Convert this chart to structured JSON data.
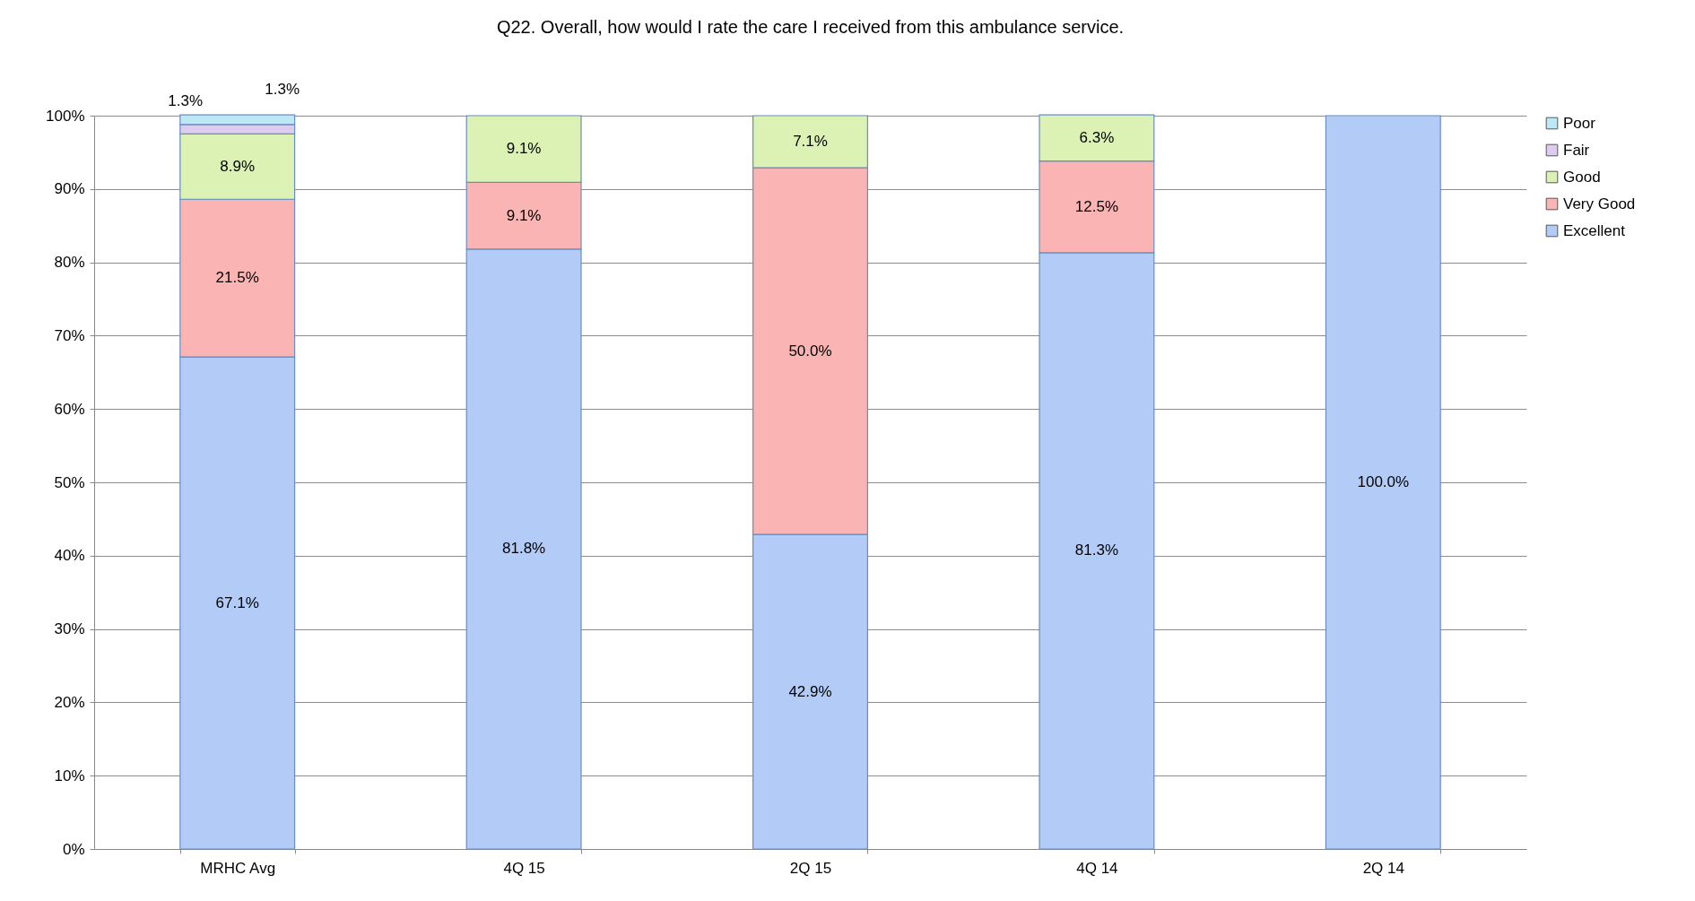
{
  "chart_data": {
    "type": "bar",
    "title": "Q22.  Overall, how would I rate the care I received from this ambulance service.",
    "categories": [
      "MRHC Avg",
      "4Q 15",
      "2Q 15",
      "4Q 14",
      "2Q 14"
    ],
    "stacked": true,
    "ylim": [
      0,
      100
    ],
    "yticks": [
      {
        "value": 0,
        "label": "0%"
      },
      {
        "value": 10,
        "label": "10%"
      },
      {
        "value": 20,
        "label": "20%"
      },
      {
        "value": 30,
        "label": "30%"
      },
      {
        "value": 40,
        "label": "40%"
      },
      {
        "value": 50,
        "label": "50%"
      },
      {
        "value": 60,
        "label": "60%"
      },
      {
        "value": 70,
        "label": "70%"
      },
      {
        "value": 80,
        "label": "80%"
      },
      {
        "value": 90,
        "label": "90%"
      },
      {
        "value": 100,
        "label": "100%"
      }
    ],
    "grid": "y",
    "legend": "right",
    "series": [
      {
        "name": "Excellent",
        "color": "#b3cbf7",
        "values": [
          67.1,
          81.8,
          42.9,
          81.3,
          100
        ],
        "value_labels": [
          "67.1%",
          "81.8%",
          "42.9%",
          "81.3%",
          "100.0%"
        ]
      },
      {
        "name": "Very Good",
        "color": "#fbb4b4",
        "values": [
          21.5,
          9.1,
          50.0,
          12.5,
          0
        ],
        "value_labels": [
          "21.5%",
          "9.1%",
          "50.0%",
          "12.5%",
          null
        ]
      },
      {
        "name": "Good",
        "color": "#dcf2b4",
        "values": [
          8.9,
          9.1,
          7.1,
          6.3,
          0
        ],
        "value_labels": [
          "8.9%",
          "9.1%",
          "7.1%",
          "6.3%",
          null
        ]
      },
      {
        "name": "Fair",
        "color": "#dccdf0",
        "values": [
          1.3,
          0,
          0,
          0,
          0
        ],
        "value_labels": [
          "1.3%",
          null,
          null,
          null,
          null
        ]
      },
      {
        "name": "Poor",
        "color": "#bde9f6",
        "values": [
          1.3,
          0,
          0,
          0,
          0
        ],
        "value_labels": [
          "1.3%",
          null,
          null,
          null,
          null
        ]
      }
    ]
  }
}
